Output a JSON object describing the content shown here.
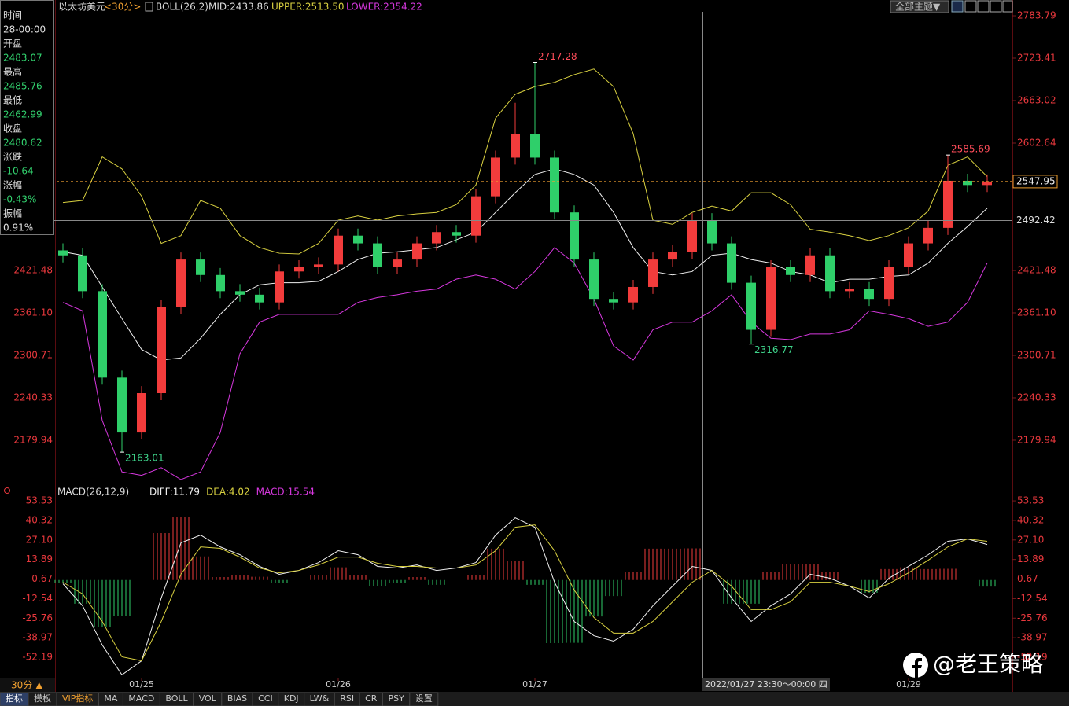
{
  "header": {
    "symbol": "以太坊美元",
    "period": "<30分>",
    "indicator": "BOLL(26,2)",
    "mid": "MID:2433.86",
    "upper": "UPPER:2513.50",
    "lower": "LOWER:2354.22",
    "theme": "全部主题▼"
  },
  "info": [
    {
      "label": "时间",
      "value": "28-00:00",
      "color": "#e0e0e0"
    },
    {
      "label": "开盘",
      "value": "2483.07",
      "color": "#32d26e"
    },
    {
      "label": "最高",
      "value": "2485.76",
      "color": "#32d26e"
    },
    {
      "label": "最低",
      "value": "2462.99",
      "color": "#32d26e"
    },
    {
      "label": "收盘",
      "value": "2480.62",
      "color": "#32d26e"
    },
    {
      "label": "涨跌",
      "value": "-10.64",
      "color": "#32d26e"
    },
    {
      "label": "涨幅",
      "value": "-0.43%",
      "color": "#32d26e"
    },
    {
      "label": "振幅",
      "value": "0.91%",
      "color": "#e0e0e0"
    }
  ],
  "chart_data": [
    {
      "type": "candlestick",
      "categories": [
        null,
        null,
        null,
        null,
        "01/25",
        null,
        null,
        null,
        null,
        null,
        null,
        null,
        null,
        null,
        "01/26",
        null,
        null,
        null,
        null,
        null,
        null,
        null,
        null,
        null,
        "01/27",
        null,
        null,
        null,
        null,
        null,
        null,
        null,
        null,
        null,
        null,
        null,
        null,
        null,
        null,
        null,
        null,
        null,
        null,
        "01/29",
        null,
        null,
        null,
        null
      ],
      "open": [
        2450,
        2443,
        2392,
        2269,
        2191,
        2247,
        2370,
        2437,
        2415,
        2392,
        2387,
        2376,
        2420,
        2426,
        2430,
        2471,
        2460,
        2426,
        2437,
        2460,
        2476,
        2471,
        2527,
        2582,
        2616,
        2582,
        2504,
        2437,
        2381,
        2376,
        2398,
        2437,
        2448,
        2493,
        2460,
        2404,
        2337,
        2426,
        2415,
        2443,
        2392,
        2395,
        2381,
        2426,
        2460,
        2482,
        2549,
        2543
      ],
      "high": [
        2460,
        2453,
        2402,
        2279,
        2257,
        2380,
        2447,
        2447,
        2425,
        2402,
        2397,
        2430,
        2436,
        2440,
        2481,
        2481,
        2470,
        2447,
        2470,
        2486,
        2486,
        2537,
        2592,
        2660,
        2717.28,
        2592,
        2514,
        2447,
        2391,
        2408,
        2447,
        2458,
        2503,
        2503,
        2470,
        2414,
        2436,
        2436,
        2453,
        2453,
        2405,
        2405,
        2436,
        2470,
        2492,
        2585.69,
        2559,
        2558
      ],
      "low": [
        2433,
        2382,
        2259,
        2163.01,
        2181,
        2237,
        2360,
        2405,
        2382,
        2377,
        2366,
        2366,
        2410,
        2416,
        2420,
        2450,
        2416,
        2416,
        2427,
        2450,
        2461,
        2461,
        2517,
        2572,
        2572,
        2494,
        2427,
        2371,
        2366,
        2366,
        2388,
        2427,
        2438,
        2450,
        2394,
        2316.77,
        2327,
        2405,
        2405,
        2382,
        2382,
        2371,
        2371,
        2416,
        2450,
        2472,
        2533,
        2533
      ],
      "close": [
        2443,
        2392,
        2269,
        2191,
        2247,
        2370,
        2437,
        2415,
        2392,
        2387,
        2376,
        2420,
        2426,
        2430,
        2471,
        2460,
        2426,
        2437,
        2460,
        2476,
        2471,
        2527,
        2582,
        2616,
        2582,
        2504,
        2437,
        2381,
        2376,
        2398,
        2437,
        2448,
        2493,
        2460,
        2404,
        2337,
        2426,
        2415,
        2443,
        2392,
        2395,
        2381,
        2426,
        2460,
        2482,
        2549,
        2543,
        2548
      ],
      "up_color": "#f23c3c",
      "down_color": "#2fcf6a",
      "high_label_color": "#ff4d5a",
      "low_label_color": "#3ed38a",
      "series": [
        {
          "color": "#d8d040",
          "values": [
            2518,
            2521,
            2583,
            2566,
            2527,
            2460,
            2471,
            2521,
            2510,
            2471,
            2454,
            2446,
            2445,
            2460,
            2493,
            2499,
            2493,
            2499,
            2502,
            2504,
            2515,
            2543,
            2638,
            2672,
            2683,
            2689,
            2700,
            2708,
            2683,
            2616,
            2493,
            2487,
            2504,
            2513,
            2506,
            2532,
            2532,
            2515,
            2480,
            2476,
            2471,
            2464,
            2471,
            2482,
            2506,
            2571,
            2583,
            2555
          ]
        },
        {
          "color": "#f0f0f0",
          "values": [
            2448,
            2443,
            2398,
            2353,
            2309,
            2294,
            2297,
            2325,
            2359,
            2387,
            2401,
            2404,
            2404,
            2406,
            2420,
            2437,
            2446,
            2448,
            2451,
            2454,
            2465,
            2476,
            2504,
            2532,
            2558,
            2566,
            2558,
            2543,
            2504,
            2454,
            2420,
            2415,
            2420,
            2443,
            2446,
            2437,
            2432,
            2420,
            2415,
            2404,
            2409,
            2409,
            2413,
            2415,
            2432,
            2460,
            2484,
            2510
          ]
        },
        {
          "color": "#d838e0",
          "values": [
            2376,
            2364,
            2208,
            2135,
            2130,
            2141,
            2124,
            2135,
            2191,
            2303,
            2348,
            2359,
            2359,
            2359,
            2359,
            2376,
            2383,
            2387,
            2392,
            2395,
            2409,
            2415,
            2409,
            2395,
            2420,
            2454,
            2432,
            2381,
            2314,
            2294,
            2337,
            2348,
            2348,
            2364,
            2387,
            2348,
            2325,
            2323,
            2331,
            2331,
            2337,
            2364,
            2359,
            2353,
            2342,
            2348,
            2376,
            2432
          ]
        }
      ],
      "ylim": [
        2118.4,
        2789.4
      ],
      "yticks": [
        2783.79,
        2723.41,
        2663.02,
        2602.64,
        2421.48,
        {
          "value": 2361.1,
          "label": "2361.10"
        },
        2300.71,
        2240.33,
        2179.94
      ],
      "last_price": 2547.95,
      "last_price_color": "#f0a030",
      "crosshair_price": 2492.42,
      "crosshair_time": "2022/01/27 23:30～00:00 四"
    },
    {
      "type": "macd",
      "title": "MACD(26,12,9)",
      "legend": [
        {
          "text": "DIFF:11.79",
          "color": "#f0f0f0"
        },
        {
          "text": "DEA:4.02",
          "color": "#d8d040"
        },
        {
          "text": "MACD:15.54",
          "color": "#d838e0"
        }
      ],
      "series": [
        {
          "color": "#f0f0f0",
          "values": [
            -2.5,
            -17.4,
            -43.9,
            -64.1,
            -54.6,
            -12.1,
            25.1,
            30.4,
            22.4,
            17.1,
            9.2,
            3.9,
            6.5,
            11.8,
            19.8,
            17.1,
            9.2,
            8.1,
            10.2,
            6.5,
            8.1,
            11.8,
            30.4,
            42.1,
            35.7,
            -1.5,
            -28.0,
            -37.6,
            -41.3,
            -33.3,
            -17.4,
            -4.1,
            9.2,
            6.5,
            -12.1,
            -28.0,
            -17.4,
            -9.4,
            3.9,
            1.2,
            -4.1,
            -12.1,
            1.2,
            9.2,
            17.1,
            26.2,
            27.8,
            24.0
          ]
        },
        {
          "color": "#d8d040",
          "values": [
            -1.5,
            -9.4,
            -28.0,
            -51.9,
            -54.6,
            -28.0,
            3.9,
            22.4,
            21.4,
            15.5,
            8.1,
            4.9,
            6.5,
            10.2,
            15.5,
            15.5,
            11.3,
            9.2,
            9.2,
            8.1,
            8.1,
            10.2,
            19.8,
            35.7,
            37.3,
            19.8,
            -6.8,
            -25.3,
            -35.9,
            -35.9,
            -28.0,
            -14.7,
            -1.5,
            6.5,
            -4.1,
            -20.0,
            -20.0,
            -14.7,
            -1.5,
            -1.5,
            -4.1,
            -7.8,
            -2.5,
            4.9,
            13.4,
            22.4,
            27.8,
            26.2
          ]
        }
      ],
      "histogram": [
        -2.0,
        -16.0,
        -31.8,
        -24.4,
        0,
        31.8,
        42.4,
        16.0,
        2.0,
        3.2,
        2.2,
        -2.0,
        0,
        3.2,
        8.6,
        3.2,
        -4.2,
        -2.2,
        2.0,
        -3.2,
        0,
        3.2,
        21.2,
        12.8,
        -3.2,
        -42.6,
        -42.4,
        -24.6,
        -10.8,
        5.2,
        21.2,
        21.2,
        21.4,
        0,
        -16.0,
        -16.0,
        5.2,
        10.6,
        10.8,
        5.4,
        0,
        -8.6,
        7.4,
        8.6,
        7.4,
        7.6,
        0,
        -4.4
      ],
      "up_color": "#f23c3c",
      "down_color": "#2fcf6a",
      "ylim": [
        -66.0,
        62.6
      ],
      "yticks": [
        53.53,
        40.32,
        {
          "value": 27.1,
          "label": "27.10"
        },
        13.89,
        0.67,
        -12.54,
        -25.76,
        -38.97,
        -52.19
      ]
    }
  ],
  "footer": {
    "period": "30分 ▲",
    "tabs": [
      "指标",
      "模板",
      "VIP指标",
      "MA",
      "MACD",
      "BOLL",
      "VOL",
      "BIAS",
      "CCI",
      "KDJ",
      "LW&",
      "RSI",
      "CR",
      "PSY",
      "设置"
    ]
  },
  "watermark": "@老王策略"
}
